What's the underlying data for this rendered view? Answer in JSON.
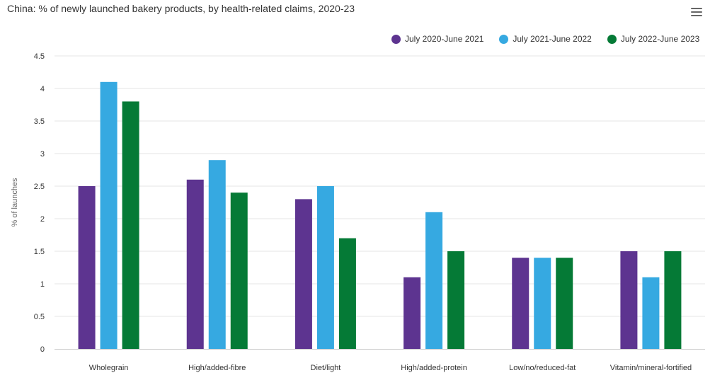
{
  "header": {
    "title": "China: % of newly launched bakery products, by health-related claims, 2020-23",
    "menu_icon": "hamburger-menu-icon"
  },
  "colors": {
    "series": [
      "#5d3490",
      "#36a9e1",
      "#057a36"
    ],
    "grid": "#e6e6e6",
    "axis": "#cccccc",
    "text": "#333333"
  },
  "chart_data": {
    "type": "bar",
    "title": "China: % of newly launched bakery products, by health-related claims, 2020-23",
    "xlabel": "",
    "ylabel": "% of launches",
    "ylim": [
      0,
      4.5
    ],
    "yticks": [
      0,
      0.5,
      1,
      1.5,
      2,
      2.5,
      3,
      3.5,
      4,
      4.5
    ],
    "ytick_labels": [
      "0",
      "0.5",
      "1",
      "1.5",
      "2",
      "2.5",
      "3",
      "3.5",
      "4",
      "4.5"
    ],
    "grid": true,
    "legend_position": "top-right",
    "categories": [
      "Wholegrain",
      "High/added-fibre",
      "Diet/light",
      "High/added-protein",
      "Low/no/reduced-fat",
      "Vitamin/mineral-fortified"
    ],
    "series": [
      {
        "name": "July 2020-June 2021",
        "color": "#5d3490",
        "values": [
          2.5,
          2.6,
          2.3,
          1.1,
          1.4,
          1.5
        ]
      },
      {
        "name": "July 2021-June 2022",
        "color": "#36a9e1",
        "values": [
          4.1,
          2.9,
          2.5,
          2.1,
          1.4,
          1.1
        ]
      },
      {
        "name": "July 2022-June 2023",
        "color": "#057a36",
        "values": [
          3.8,
          2.4,
          1.7,
          1.5,
          1.4,
          1.5
        ]
      }
    ]
  }
}
